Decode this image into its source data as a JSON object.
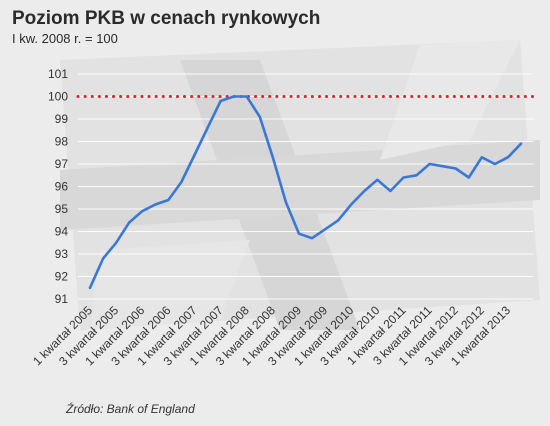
{
  "header": {
    "title": "Poziom PKB w cenach rynkowych",
    "subtitle": "I kw. 2008 r. = 100"
  },
  "footer": {
    "source": "Źródło: Bank of England"
  },
  "chart_data": {
    "type": "line",
    "title": "Poziom PKB w cenach rynkowych",
    "subtitle": "I kw. 2008 r. = 100",
    "xlabel": "",
    "ylabel": "",
    "ylim": [
      91,
      101
    ],
    "yticks": [
      91,
      92,
      93,
      94,
      95,
      96,
      97,
      98,
      99,
      100,
      101
    ],
    "grid": "horizontal",
    "reference_line": {
      "value": 100,
      "style": "dotted",
      "color": "#d9262e"
    },
    "x_tick_labels": [
      "1 kwartał 2005",
      "3 kwartał 2005",
      "1 kwartał 2006",
      "3 kwartał 2006",
      "1 kwartał 2007",
      "3 kwartał 2007",
      "1 kwartał 2008",
      "3 kwartał 2008",
      "1 kwartał 2009",
      "3 kwartał 2009",
      "1 kwartał 2010",
      "3 kwartał 2010",
      "1 kwartał 2011",
      "3 kwartał 2011",
      "1 kwartał 2012",
      "3 kwartał 2012",
      "1 kwartał 2013"
    ],
    "x": [
      "1 kwartał 2005",
      "2 kwartał 2005",
      "3 kwartał 2005",
      "4 kwartał 2005",
      "1 kwartał 2006",
      "2 kwartał 2006",
      "3 kwartał 2006",
      "4 kwartał 2006",
      "1 kwartał 2007",
      "2 kwartał 2007",
      "3 kwartał 2007",
      "4 kwartał 2007",
      "1 kwartał 2008",
      "2 kwartał 2008",
      "3 kwartał 2008",
      "4 kwartał 2008",
      "1 kwartał 2009",
      "2 kwartał 2009",
      "3 kwartał 2009",
      "4 kwartał 2009",
      "1 kwartał 2010",
      "2 kwartał 2010",
      "3 kwartał 2010",
      "4 kwartał 2010",
      "1 kwartał 2011",
      "2 kwartał 2011",
      "3 kwartał 2011",
      "4 kwartał 2011",
      "1 kwartał 2012",
      "2 kwartał 2012",
      "3 kwartał 2012",
      "4 kwartał 2012",
      "1 kwartał 2013",
      "2 kwartał 2013"
    ],
    "series": [
      {
        "color": "#3a78d6",
        "values": [
          91.5,
          92.8,
          93.5,
          94.4,
          94.9,
          95.2,
          95.4,
          96.2,
          97.4,
          98.6,
          99.8,
          100.0,
          100.0,
          99.1,
          97.3,
          95.3,
          93.9,
          93.7,
          94.1,
          94.5,
          95.2,
          95.8,
          96.3,
          95.8,
          96.4,
          96.5,
          97.0,
          96.9,
          96.8,
          96.4,
          97.3,
          97.0,
          97.3,
          97.9
        ]
      }
    ]
  }
}
